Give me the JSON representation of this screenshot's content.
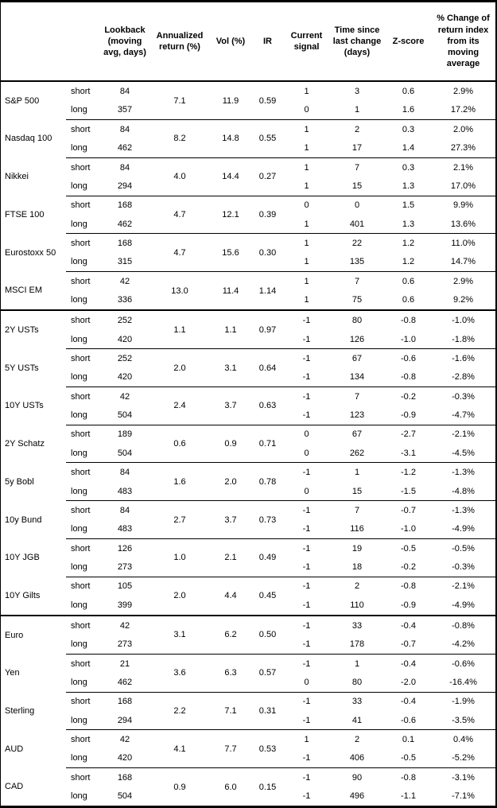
{
  "colors": {
    "background": "#ffffff",
    "text": "#000000",
    "border": "#000000"
  },
  "table": {
    "header": {
      "instrument": "",
      "leg": "",
      "lookback": "Lookback (moving avg, days)",
      "annualized": "Annualized return (%)",
      "vol": "Vol (%)",
      "ir": "IR",
      "signal": "Current signal",
      "time_since": "Time since last change (days)",
      "zscore": "Z-score",
      "pct_change": "% Change of return index from its moving average"
    }
  },
  "chart_data": {
    "type": "table",
    "columns": [
      "",
      "",
      "Lookback (moving avg, days)",
      "Annualized return (%)",
      "Vol (%)",
      "IR",
      "Current signal",
      "Time since last change (days)",
      "Z-score",
      "% Change of return index from its moving average"
    ],
    "sections": [
      {
        "groups": [
          {
            "instrument": "S&P 500",
            "annualized_return": "7.1",
            "vol": "11.9",
            "ir": "0.59",
            "legs": [
              {
                "label": "short",
                "lookback": "84",
                "signal": "1",
                "days": "3",
                "zscore": "0.6",
                "pct_change": "2.9%"
              },
              {
                "label": "long",
                "lookback": "357",
                "signal": "0",
                "days": "1",
                "zscore": "1.6",
                "pct_change": "17.2%"
              }
            ]
          },
          {
            "instrument": "Nasdaq 100",
            "annualized_return": "8.2",
            "vol": "14.8",
            "ir": "0.55",
            "legs": [
              {
                "label": "short",
                "lookback": "84",
                "signal": "1",
                "days": "2",
                "zscore": "0.3",
                "pct_change": "2.0%"
              },
              {
                "label": "long",
                "lookback": "462",
                "signal": "1",
                "days": "17",
                "zscore": "1.4",
                "pct_change": "27.3%"
              }
            ]
          },
          {
            "instrument": "Nikkei",
            "annualized_return": "4.0",
            "vol": "14.4",
            "ir": "0.27",
            "legs": [
              {
                "label": "short",
                "lookback": "84",
                "signal": "1",
                "days": "7",
                "zscore": "0.3",
                "pct_change": "2.1%"
              },
              {
                "label": "long",
                "lookback": "294",
                "signal": "1",
                "days": "15",
                "zscore": "1.3",
                "pct_change": "17.0%"
              }
            ]
          },
          {
            "instrument": "FTSE 100",
            "annualized_return": "4.7",
            "vol": "12.1",
            "ir": "0.39",
            "legs": [
              {
                "label": "short",
                "lookback": "168",
                "signal": "0",
                "days": "0",
                "zscore": "1.5",
                "pct_change": "9.9%"
              },
              {
                "label": "long",
                "lookback": "462",
                "signal": "1",
                "days": "401",
                "zscore": "1.3",
                "pct_change": "13.6%"
              }
            ]
          },
          {
            "instrument": "Eurostoxx 50",
            "annualized_return": "4.7",
            "vol": "15.6",
            "ir": "0.30",
            "legs": [
              {
                "label": "short",
                "lookback": "168",
                "signal": "1",
                "days": "22",
                "zscore": "1.2",
                "pct_change": "11.0%"
              },
              {
                "label": "long",
                "lookback": "315",
                "signal": "1",
                "days": "135",
                "zscore": "1.2",
                "pct_change": "14.7%"
              }
            ]
          },
          {
            "instrument": "MSCI EM",
            "annualized_return": "13.0",
            "vol": "11.4",
            "ir": "1.14",
            "legs": [
              {
                "label": "short",
                "lookback": "42",
                "signal": "1",
                "days": "7",
                "zscore": "0.6",
                "pct_change": "2.9%"
              },
              {
                "label": "long",
                "lookback": "336",
                "signal": "1",
                "days": "75",
                "zscore": "0.6",
                "pct_change": "9.2%"
              }
            ]
          }
        ]
      },
      {
        "groups": [
          {
            "instrument": "2Y USTs",
            "annualized_return": "1.1",
            "vol": "1.1",
            "ir": "0.97",
            "legs": [
              {
                "label": "short",
                "lookback": "252",
                "signal": "-1",
                "days": "80",
                "zscore": "-0.8",
                "pct_change": "-1.0%"
              },
              {
                "label": "long",
                "lookback": "420",
                "signal": "-1",
                "days": "126",
                "zscore": "-1.0",
                "pct_change": "-1.8%"
              }
            ]
          },
          {
            "instrument": "5Y USTs",
            "annualized_return": "2.0",
            "vol": "3.1",
            "ir": "0.64",
            "legs": [
              {
                "label": "short",
                "lookback": "252",
                "signal": "-1",
                "days": "67",
                "zscore": "-0.6",
                "pct_change": "-1.6%"
              },
              {
                "label": "long",
                "lookback": "420",
                "signal": "-1",
                "days": "134",
                "zscore": "-0.8",
                "pct_change": "-2.8%"
              }
            ]
          },
          {
            "instrument": "10Y USTs",
            "annualized_return": "2.4",
            "vol": "3.7",
            "ir": "0.63",
            "legs": [
              {
                "label": "short",
                "lookback": "42",
                "signal": "-1",
                "days": "7",
                "zscore": "-0.2",
                "pct_change": "-0.3%"
              },
              {
                "label": "long",
                "lookback": "504",
                "signal": "-1",
                "days": "123",
                "zscore": "-0.9",
                "pct_change": "-4.7%"
              }
            ]
          },
          {
            "instrument": "2Y Schatz",
            "annualized_return": "0.6",
            "vol": "0.9",
            "ir": "0.71",
            "legs": [
              {
                "label": "short",
                "lookback": "189",
                "signal": "0",
                "days": "67",
                "zscore": "-2.7",
                "pct_change": "-2.1%"
              },
              {
                "label": "long",
                "lookback": "504",
                "signal": "0",
                "days": "262",
                "zscore": "-3.1",
                "pct_change": "-4.5%"
              }
            ]
          },
          {
            "instrument": "5y Bobl",
            "annualized_return": "1.6",
            "vol": "2.0",
            "ir": "0.78",
            "legs": [
              {
                "label": "short",
                "lookback": "84",
                "signal": "-1",
                "days": "1",
                "zscore": "-1.2",
                "pct_change": "-1.3%"
              },
              {
                "label": "long",
                "lookback": "483",
                "signal": "0",
                "days": "15",
                "zscore": "-1.5",
                "pct_change": "-4.8%"
              }
            ]
          },
          {
            "instrument": "10y Bund",
            "annualized_return": "2.7",
            "vol": "3.7",
            "ir": "0.73",
            "legs": [
              {
                "label": "short",
                "lookback": "84",
                "signal": "-1",
                "days": "7",
                "zscore": "-0.7",
                "pct_change": "-1.3%"
              },
              {
                "label": "long",
                "lookback": "483",
                "signal": "-1",
                "days": "116",
                "zscore": "-1.0",
                "pct_change": "-4.9%"
              }
            ]
          },
          {
            "instrument": "10Y JGB",
            "annualized_return": "1.0",
            "vol": "2.1",
            "ir": "0.49",
            "legs": [
              {
                "label": "short",
                "lookback": "126",
                "signal": "-1",
                "days": "19",
                "zscore": "-0.5",
                "pct_change": "-0.5%"
              },
              {
                "label": "long",
                "lookback": "273",
                "signal": "-1",
                "days": "18",
                "zscore": "-0.2",
                "pct_change": "-0.3%"
              }
            ]
          },
          {
            "instrument": "10Y Gilts",
            "annualized_return": "2.0",
            "vol": "4.4",
            "ir": "0.45",
            "legs": [
              {
                "label": "short",
                "lookback": "105",
                "signal": "-1",
                "days": "2",
                "zscore": "-0.8",
                "pct_change": "-2.1%"
              },
              {
                "label": "long",
                "lookback": "399",
                "signal": "-1",
                "days": "110",
                "zscore": "-0.9",
                "pct_change": "-4.9%"
              }
            ]
          }
        ]
      },
      {
        "groups": [
          {
            "instrument": "Euro",
            "annualized_return": "3.1",
            "vol": "6.2",
            "ir": "0.50",
            "legs": [
              {
                "label": "short",
                "lookback": "42",
                "signal": "-1",
                "days": "33",
                "zscore": "-0.4",
                "pct_change": "-0.8%"
              },
              {
                "label": "long",
                "lookback": "273",
                "signal": "-1",
                "days": "178",
                "zscore": "-0.7",
                "pct_change": "-4.2%"
              }
            ]
          },
          {
            "instrument": "Yen",
            "annualized_return": "3.6",
            "vol": "6.3",
            "ir": "0.57",
            "legs": [
              {
                "label": "short",
                "lookback": "21",
                "signal": "-1",
                "days": "1",
                "zscore": "-0.4",
                "pct_change": "-0.6%"
              },
              {
                "label": "long",
                "lookback": "462",
                "signal": "0",
                "days": "80",
                "zscore": "-2.0",
                "pct_change": "-16.4%"
              }
            ]
          },
          {
            "instrument": "Sterling",
            "annualized_return": "2.2",
            "vol": "7.1",
            "ir": "0.31",
            "legs": [
              {
                "label": "short",
                "lookback": "168",
                "signal": "-1",
                "days": "33",
                "zscore": "-0.4",
                "pct_change": "-1.9%"
              },
              {
                "label": "long",
                "lookback": "294",
                "signal": "-1",
                "days": "41",
                "zscore": "-0.6",
                "pct_change": "-3.5%"
              }
            ]
          },
          {
            "instrument": "AUD",
            "annualized_return": "4.1",
            "vol": "7.7",
            "ir": "0.53",
            "legs": [
              {
                "label": "short",
                "lookback": "42",
                "signal": "1",
                "days": "2",
                "zscore": "0.1",
                "pct_change": "0.4%"
              },
              {
                "label": "long",
                "lookback": "420",
                "signal": "-1",
                "days": "406",
                "zscore": "-0.5",
                "pct_change": "-5.2%"
              }
            ]
          },
          {
            "instrument": "CAD",
            "annualized_return": "0.9",
            "vol": "6.0",
            "ir": "0.15",
            "legs": [
              {
                "label": "short",
                "lookback": "168",
                "signal": "-1",
                "days": "90",
                "zscore": "-0.8",
                "pct_change": "-3.1%"
              },
              {
                "label": "long",
                "lookback": "504",
                "signal": "-1",
                "days": "496",
                "zscore": "-1.1",
                "pct_change": "-7.1%"
              }
            ]
          }
        ]
      }
    ]
  }
}
